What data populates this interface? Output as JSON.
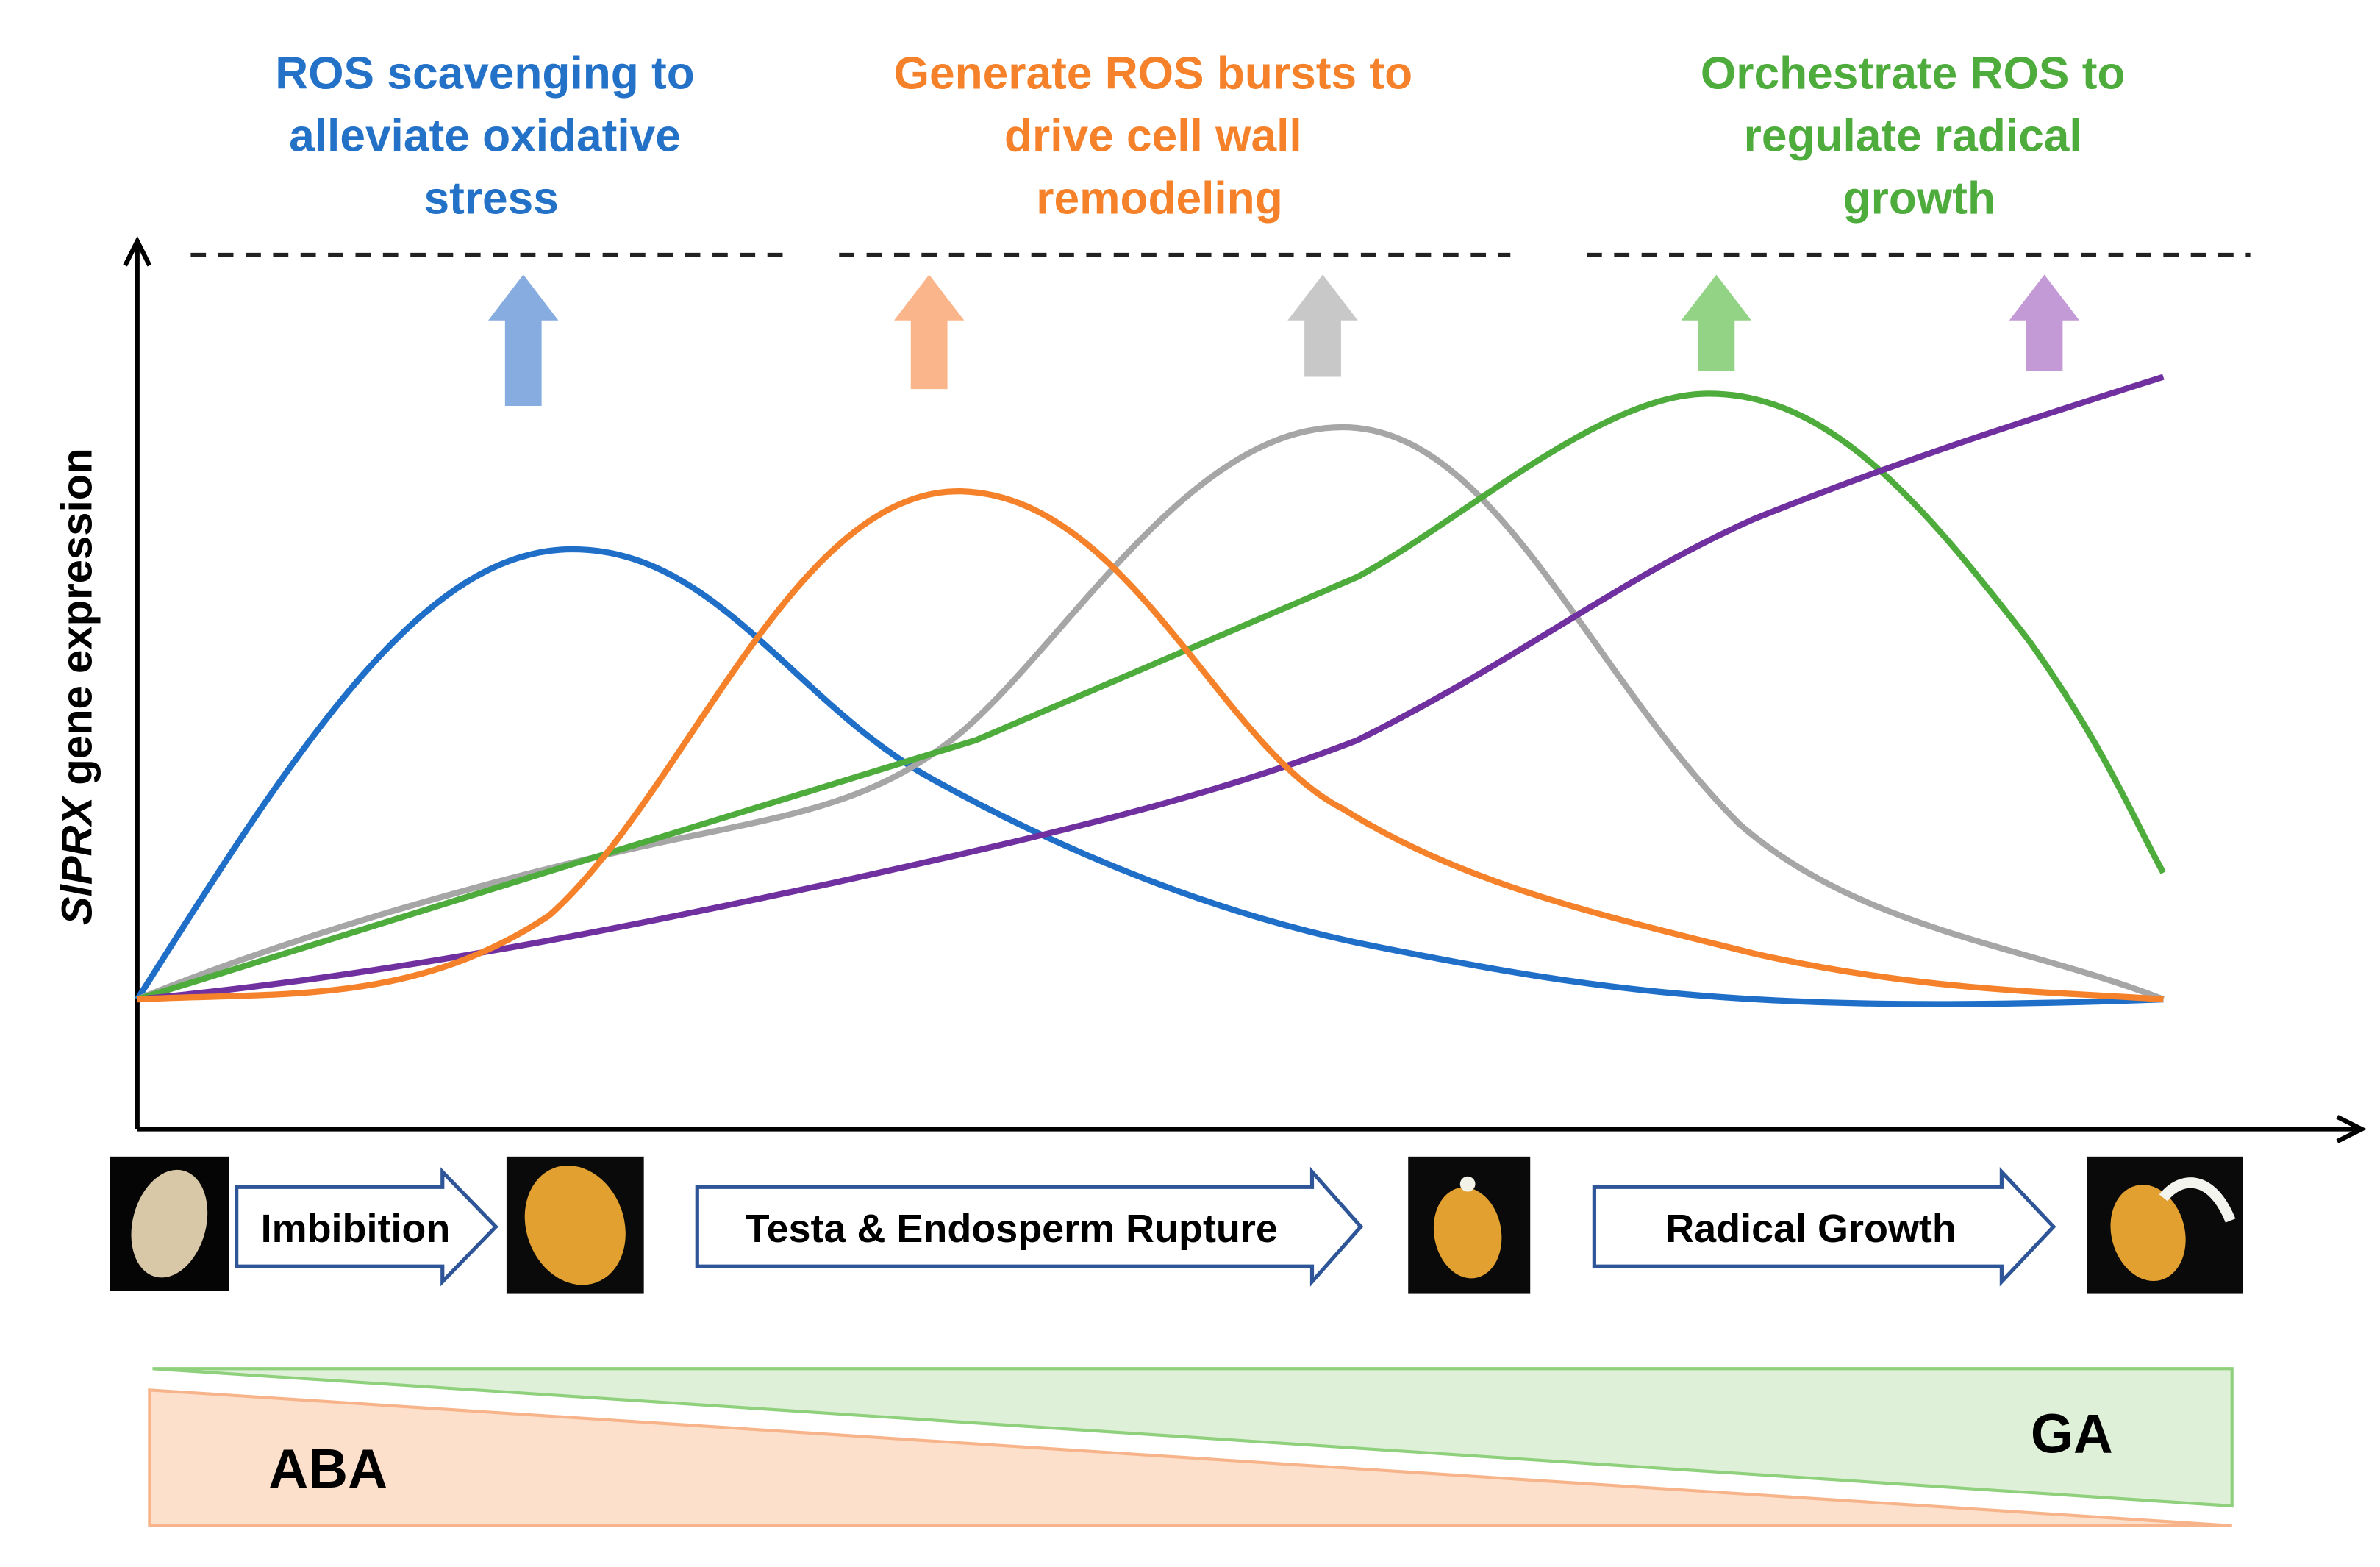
{
  "annotations": [
    {
      "lines": [
        "ROS scavenging to",
        "alleviate oxidative",
        "stress"
      ]
    },
    {
      "lines": [
        "Generate ROS bursts to",
        "drive cell wall",
        "remodeling"
      ]
    },
    {
      "lines": [
        "Orchestrate ROS to",
        "regulate radical",
        "growth"
      ]
    }
  ],
  "y_axis_label": {
    "italic": "SlPRX",
    "rest": "gene expression"
  },
  "stages": [
    "Imbibition",
    "Testa & Endosperm Rupture",
    "Radical Growth"
  ],
  "hormones": {
    "left": "ABA",
    "right": "GA"
  }
}
